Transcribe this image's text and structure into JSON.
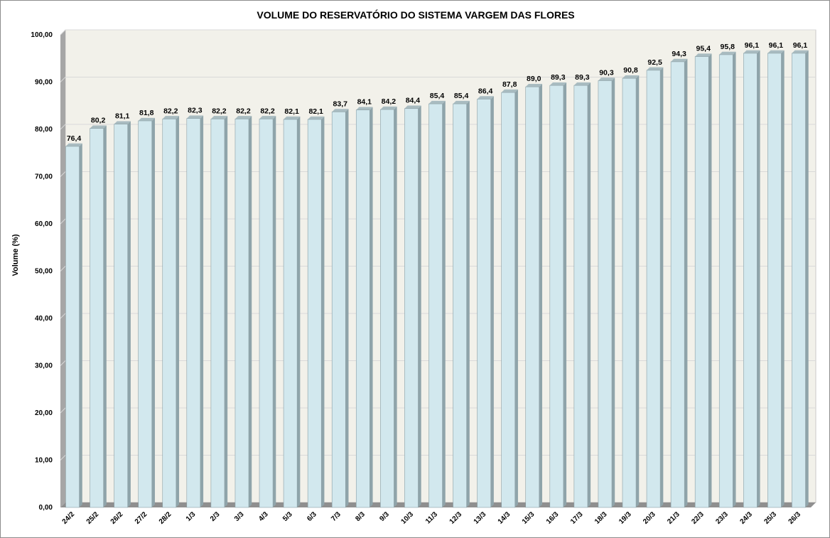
{
  "chart_data": {
    "type": "bar",
    "title": "VOLUME DO RESERVATÓRIO DO SISTEMA VARGEM DAS FLORES",
    "xlabel": "",
    "ylabel": "Volume (%)",
    "ylim": [
      0,
      100
    ],
    "ytick_step": 10,
    "ytick_labels": [
      "0,00",
      "10,00",
      "20,00",
      "30,00",
      "40,00",
      "50,00",
      "60,00",
      "70,00",
      "80,00",
      "90,00",
      "100,00"
    ],
    "categories": [
      "24/2",
      "25/2",
      "26/2",
      "27/2",
      "28/2",
      "1/3",
      "2/3",
      "3/3",
      "4/3",
      "5/3",
      "6/3",
      "7/3",
      "8/3",
      "9/3",
      "10/3",
      "11/3",
      "12/3",
      "13/3",
      "14/3",
      "15/3",
      "16/3",
      "17/3",
      "18/3",
      "19/3",
      "20/3",
      "21/3",
      "22/3",
      "23/3",
      "24/3",
      "25/3",
      "26/3"
    ],
    "values": [
      76.4,
      80.2,
      81.1,
      81.8,
      82.2,
      82.3,
      82.2,
      82.2,
      82.2,
      82.1,
      82.1,
      83.7,
      84.1,
      84.2,
      84.4,
      85.4,
      85.4,
      86.4,
      87.8,
      89.0,
      89.3,
      89.3,
      90.3,
      90.8,
      92.5,
      94.3,
      95.4,
      95.8,
      96.1,
      96.1,
      96.1
    ],
    "value_labels": [
      "76,4",
      "80,2",
      "81,1",
      "81,8",
      "82,2",
      "82,3",
      "82,2",
      "82,2",
      "82,2",
      "82,1",
      "82,1",
      "83,7",
      "84,1",
      "84,2",
      "84,4",
      "85,4",
      "85,4",
      "86,4",
      "87,8",
      "89,0",
      "89,3",
      "89,3",
      "90,3",
      "90,8",
      "92,5",
      "94,3",
      "95,4",
      "95,8",
      "96,1",
      "96,1",
      "96,1"
    ],
    "grid": true,
    "legend": "none",
    "colors": {
      "bar_front": "#d2e8ee",
      "bar_side": "#8fa4aa",
      "bar_top": "#a9bcc1",
      "bar_edge": "#8a9ea4",
      "plot_back": "#f2f1ea",
      "plot_side_wall": "#a6a6a6",
      "plot_floor": "#8f8f8f",
      "gridline": "#d9d9d9"
    }
  }
}
